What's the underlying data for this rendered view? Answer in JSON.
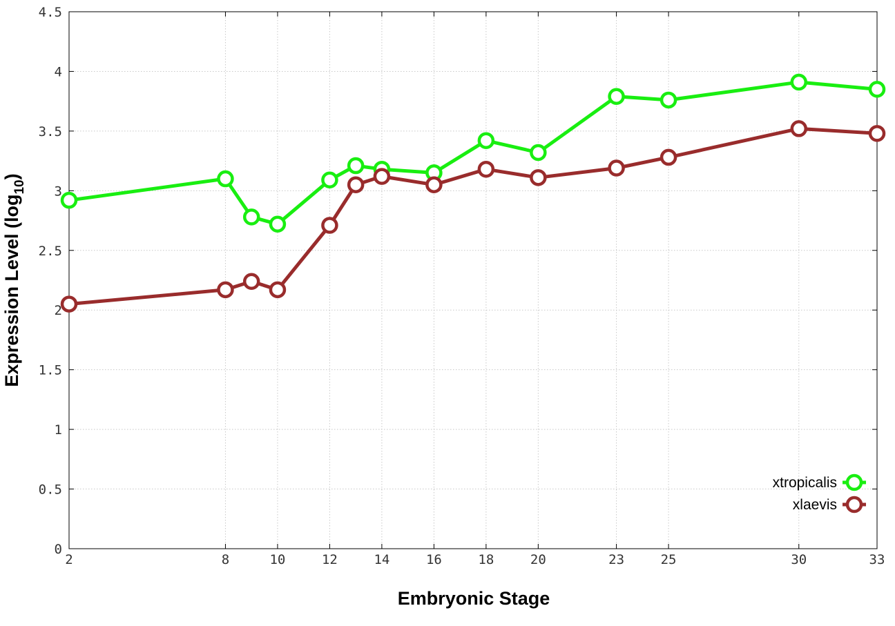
{
  "chart_data": {
    "type": "line",
    "title": "",
    "xlabel": "Embryonic Stage",
    "ylabel": {
      "main": "Expression Level (log",
      "subscript": "10",
      "close": ")"
    },
    "x": [
      2,
      8,
      9,
      10,
      12,
      13,
      14,
      16,
      18,
      20,
      23,
      25,
      30,
      33
    ],
    "xticks": [
      "2",
      "8",
      "10",
      "12",
      "14",
      "16",
      "18",
      "20",
      "23",
      "25",
      "30",
      "33"
    ],
    "xtick_values": [
      2,
      8,
      10,
      12,
      14,
      16,
      18,
      20,
      23,
      25,
      30,
      33
    ],
    "xlim": [
      2,
      33
    ],
    "yticks": [
      "0",
      "0.5",
      "1",
      "1.5",
      "2",
      "2.5",
      "3",
      "3.5",
      "4",
      "4.5"
    ],
    "ytick_values": [
      0,
      0.5,
      1,
      1.5,
      2,
      2.5,
      3,
      3.5,
      4,
      4.5
    ],
    "ylim": [
      0,
      4.5
    ],
    "grid": true,
    "legend_position": "bottom-right",
    "series": [
      {
        "name": "xtropicalis",
        "color": "#19ee11",
        "values": [
          2.92,
          3.1,
          2.78,
          2.72,
          3.09,
          3.21,
          3.18,
          3.15,
          3.42,
          3.32,
          3.79,
          3.76,
          3.91,
          3.85
        ]
      },
      {
        "name": "xlaevis",
        "color": "#992c2c",
        "values": [
          2.05,
          2.17,
          2.24,
          2.17,
          2.71,
          3.05,
          3.12,
          3.05,
          3.18,
          3.11,
          3.19,
          3.28,
          3.52,
          3.48
        ]
      }
    ]
  }
}
